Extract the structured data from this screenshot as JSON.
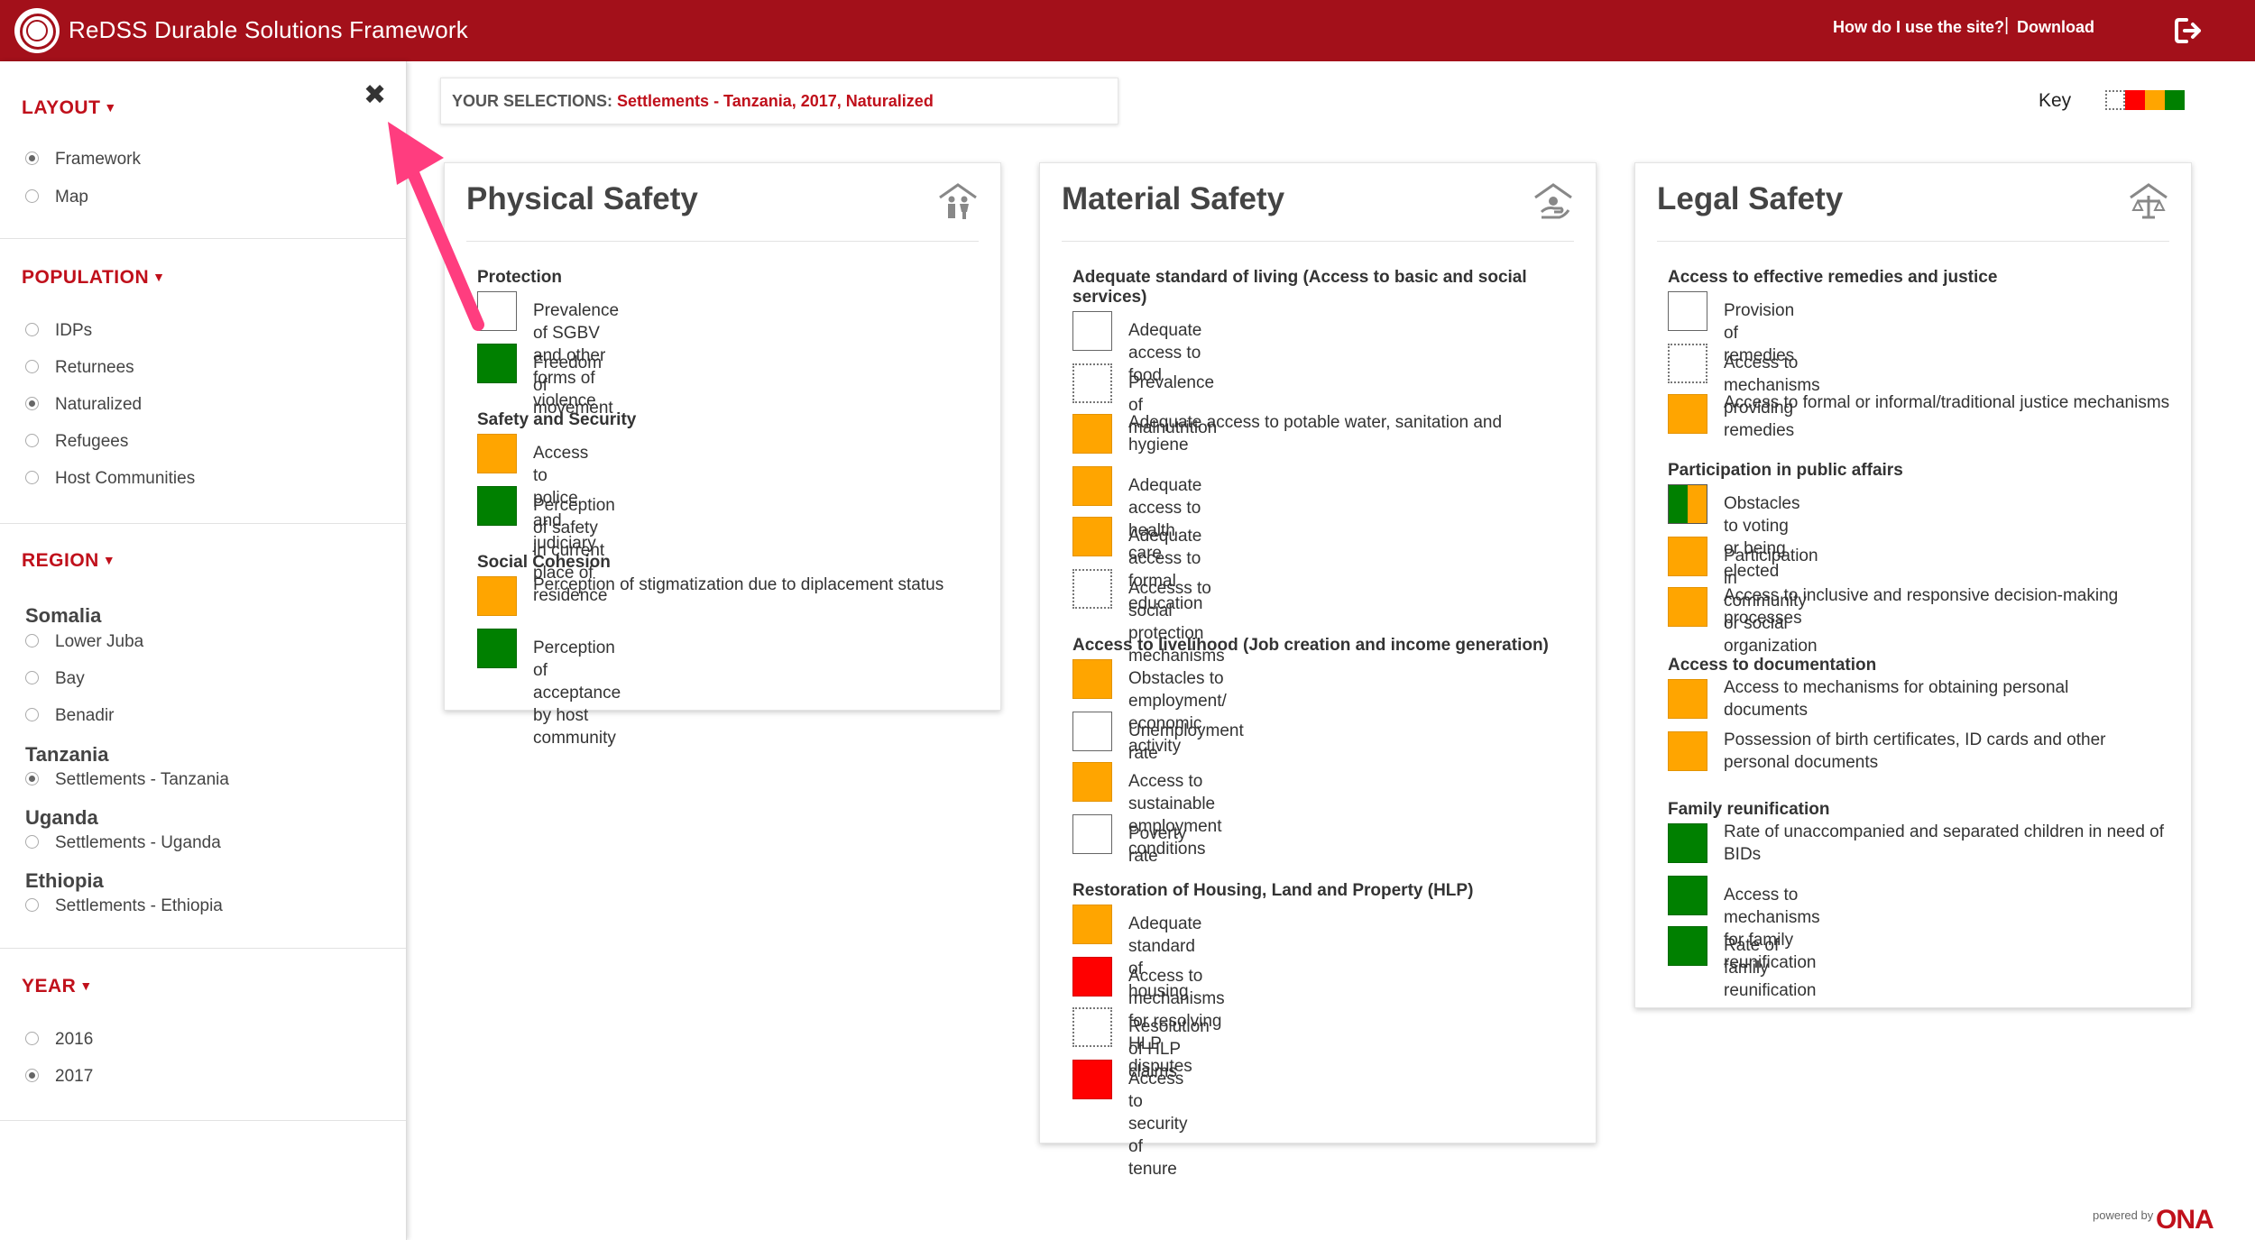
{
  "header": {
    "title": "ReDSS Durable Solutions Framework",
    "help_link": "How do I use the site?",
    "separator": "|",
    "download_link": "Download",
    "brand_color": "#a3101a"
  },
  "sidebar": {
    "close_icon": "✖",
    "layout": {
      "title": "LAYOUT",
      "options": [
        {
          "label": "Framework",
          "selected": true
        },
        {
          "label": "Map",
          "selected": false
        }
      ]
    },
    "population": {
      "title": "POPULATION",
      "options": [
        {
          "label": "IDPs",
          "selected": false
        },
        {
          "label": "Returnees",
          "selected": false
        },
        {
          "label": "Naturalized",
          "selected": true
        },
        {
          "label": "Refugees",
          "selected": false
        },
        {
          "label": "Host Communities",
          "selected": false
        }
      ]
    },
    "region": {
      "title": "REGION",
      "countries": [
        {
          "name": "Somalia",
          "options": [
            {
              "label": "Lower Juba",
              "selected": false
            },
            {
              "label": "Bay",
              "selected": false
            },
            {
              "label": "Benadir",
              "selected": false
            }
          ]
        },
        {
          "name": "Tanzania",
          "options": [
            {
              "label": "Settlements - Tanzania",
              "selected": true
            }
          ]
        },
        {
          "name": "Uganda",
          "options": [
            {
              "label": "Settlements - Uganda",
              "selected": false
            }
          ]
        },
        {
          "name": "Ethiopia",
          "options": [
            {
              "label": "Settlements - Ethiopia",
              "selected": false
            }
          ]
        }
      ]
    },
    "year": {
      "title": "YEAR",
      "options": [
        {
          "label": "2016",
          "selected": false
        },
        {
          "label": "2017",
          "selected": true
        }
      ]
    }
  },
  "selections": {
    "label": "YOUR SELECTIONS:",
    "value": "Settlements - Tanzania, 2017, Naturalized"
  },
  "key": {
    "label": "Key",
    "colors": [
      "#ffffff",
      "#ff0000",
      "#ffa500",
      "#008000"
    ]
  },
  "panels": {
    "physical": {
      "title": "Physical Safety",
      "icon": "family-shelter-icon",
      "categories": [
        {
          "title": "Protection",
          "indicators": [
            {
              "label": "Prevalence of SGBV and other forms of violence",
              "status": "empty"
            },
            {
              "label": "Freedom of movement",
              "status": "green"
            }
          ]
        },
        {
          "title": "Safety and Security",
          "indicators": [
            {
              "label": "Access to police and judiciary",
              "status": "orange"
            },
            {
              "label": "Perception of safety in current place of residence",
              "status": "green"
            }
          ]
        },
        {
          "title": "Social Cohesion",
          "indicators": [
            {
              "label": "Perception of stigmatization due to diplacement status",
              "status": "orange"
            },
            {
              "label": "Perception of acceptance by host community",
              "status": "green"
            }
          ]
        }
      ]
    },
    "material": {
      "title": "Material Safety",
      "icon": "material-shelter-icon",
      "categories": [
        {
          "title": "Adequate standard of living (Access to basic and social services)",
          "indicators": [
            {
              "label": "Adequate access to food",
              "status": "empty"
            },
            {
              "label": "Prevalence of malnutrition",
              "status": "dotted"
            },
            {
              "label": "Adequate access to potable water, sanitation and hygiene",
              "status": "orange"
            },
            {
              "label": "Adequate access to health care",
              "status": "orange"
            },
            {
              "label": "Adequate access to formal education",
              "status": "orange"
            },
            {
              "label": "Accesss to social protection mechanisms",
              "status": "dotted"
            }
          ]
        },
        {
          "title": "Access to livelihood (Job creation and income generation)",
          "indicators": [
            {
              "label": "Obstacles to employment/ economic activity",
              "status": "orange"
            },
            {
              "label": "Unemployment rate",
              "status": "empty"
            },
            {
              "label": "Access to sustainable employment conditions",
              "status": "orange"
            },
            {
              "label": "Poverty rate",
              "status": "empty"
            }
          ]
        },
        {
          "title": "Restoration of Housing, Land and Property (HLP)",
          "indicators": [
            {
              "label": "Adequate standard of housing",
              "status": "orange"
            },
            {
              "label": "Access to mechanisms for resolving HLP disputes",
              "status": "red"
            },
            {
              "label": "Resolution of HLP claims",
              "status": "dotted"
            },
            {
              "label": "Access to security of tenure",
              "status": "red"
            }
          ]
        }
      ]
    },
    "legal": {
      "title": "Legal Safety",
      "icon": "scales-shelter-icon",
      "categories": [
        {
          "title": "Access to effective remedies and justice",
          "indicators": [
            {
              "label": "Provision of remedies",
              "status": "empty"
            },
            {
              "label": "Access to mechanisms providing remedies",
              "status": "dotted"
            },
            {
              "label": "Access to formal or informal/traditional justice mechanisms",
              "status": "orange"
            }
          ]
        },
        {
          "title": "Participation in public affairs",
          "indicators": [
            {
              "label": "Obstacles to voting or being elected",
              "status": "split"
            },
            {
              "label": "Participation in community or social organization",
              "status": "orange"
            },
            {
              "label": "Access to inclusive and responsive decision-making processes",
              "status": "orange"
            }
          ]
        },
        {
          "title": "Access to documentation",
          "indicators": [
            {
              "label": "Access to mechanisms for obtaining personal documents",
              "status": "orange"
            },
            {
              "label": "Possession of birth certificates, ID cards and other personal documents",
              "status": "orange"
            }
          ]
        },
        {
          "title": "Family reunification",
          "indicators": [
            {
              "label": "Rate of unaccompanied and separated children in need of BIDs",
              "status": "green"
            },
            {
              "label": "Access to mechanisms for family reunification",
              "status": "green"
            },
            {
              "label": "Rate of family reunification",
              "status": "green"
            }
          ]
        }
      ]
    }
  },
  "footer": {
    "powered_by": "powered by",
    "brand": "ONA"
  }
}
